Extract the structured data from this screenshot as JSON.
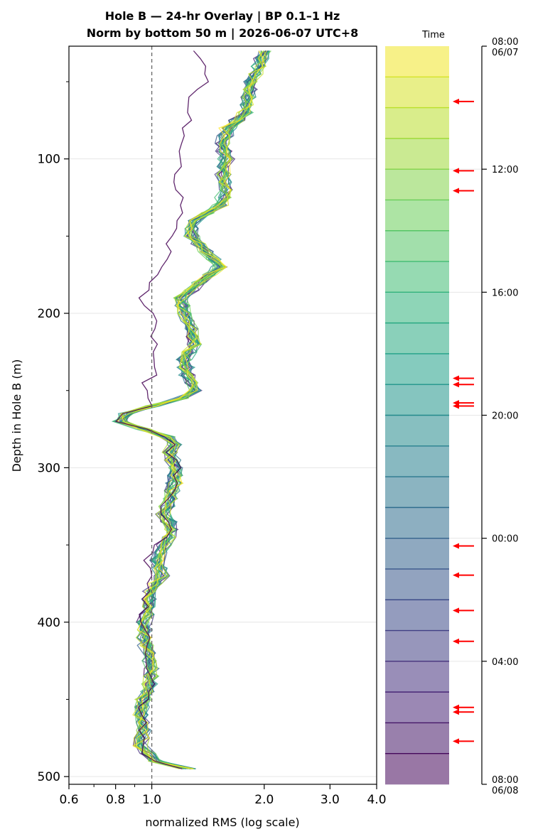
{
  "chart_data": {
    "type": "line",
    "title_line1": "Hole B — 24-hr Overlay  |  BP 0.1–1 Hz",
    "title_line2": "Norm by bottom 50 m  |  2026-06-07 UTC+8",
    "xlabel": "normalized RMS  (log scale)",
    "ylabel": "Depth in Hole B (m)",
    "x_scale": "log",
    "xlim": [
      0.6,
      4.0
    ],
    "ylim": [
      505,
      27
    ],
    "x_ticks": [
      {
        "value": 0.6,
        "label": "0.6"
      },
      {
        "value": 0.8,
        "label": "0.8"
      },
      {
        "value": 1.0,
        "label": "1.0"
      },
      {
        "value": 2.0,
        "label": "2.0"
      },
      {
        "value": 3.0,
        "label": "3.0"
      },
      {
        "value": 4.0,
        "label": "4.0"
      }
    ],
    "y_ticks": [
      {
        "value": 100,
        "label": "100"
      },
      {
        "value": 200,
        "label": "200"
      },
      {
        "value": 300,
        "label": "300"
      },
      {
        "value": 400,
        "label": "400"
      },
      {
        "value": 500,
        "label": "500"
      }
    ],
    "reference_line_x": 1.0,
    "grid": "horizontal",
    "colorbar": {
      "label": "Time",
      "colormap": "viridis",
      "start": "2026-06-07 08:00",
      "end": "2026-06-08 08:00",
      "ticks": [
        {
          "hour": 0,
          "label": "08:00",
          "sublabel": "06/07"
        },
        {
          "hour": 4,
          "label": "12:00",
          "sublabel": ""
        },
        {
          "hour": 8,
          "label": "16:00",
          "sublabel": ""
        },
        {
          "hour": 12,
          "label": "20:00",
          "sublabel": ""
        },
        {
          "hour": 16,
          "label": "00:00",
          "sublabel": ""
        },
        {
          "hour": 20,
          "label": "04:00",
          "sublabel": ""
        },
        {
          "hour": 24,
          "label": "08:00",
          "sublabel": "06/08"
        }
      ],
      "arrows_hours": [
        1.8,
        4.05,
        4.7,
        10.8,
        11.0,
        11.6,
        11.7,
        16.25,
        17.2,
        18.35,
        19.35,
        21.5,
        21.65,
        22.6
      ],
      "arrow_color": "#ff0000"
    },
    "depth_profile": {
      "depth": [
        30,
        40,
        50,
        60,
        70,
        80,
        90,
        100,
        110,
        120,
        130,
        140,
        150,
        160,
        170,
        180,
        190,
        200,
        210,
        220,
        230,
        240,
        250,
        255,
        260,
        265,
        270,
        275,
        280,
        285,
        290,
        300,
        310,
        320,
        330,
        340,
        350,
        360,
        370,
        380,
        390,
        400,
        410,
        420,
        430,
        440,
        450,
        460,
        470,
        480,
        490,
        495
      ],
      "typical_rms": [
        2.0,
        1.95,
        1.85,
        1.82,
        1.78,
        1.6,
        1.55,
        1.58,
        1.56,
        1.58,
        1.52,
        1.3,
        1.28,
        1.4,
        1.52,
        1.35,
        1.2,
        1.22,
        1.28,
        1.3,
        1.22,
        1.25,
        1.3,
        1.2,
        1.0,
        0.85,
        0.82,
        0.95,
        1.1,
        1.15,
        1.12,
        1.16,
        1.15,
        1.12,
        1.08,
        1.14,
        1.08,
        1.03,
        1.06,
        1.0,
        0.98,
        0.95,
        0.96,
        0.98,
        1.0,
        0.99,
        0.95,
        0.93,
        0.95,
        0.93,
        1.02,
        1.25
      ],
      "outlier_rms": [
        1.3,
        1.35,
        1.38,
        1.3,
        1.28,
        1.25,
        1.2,
        1.18,
        1.15,
        1.18,
        1.2,
        1.16,
        1.14,
        1.1,
        1.05,
        1.0,
        0.95,
        1.0,
        1.05,
        1.0,
        1.02,
        1.0,
        0.95,
        0.98,
        1.0,
        0.85,
        0.8,
        0.95,
        1.08,
        1.12,
        1.1,
        1.16,
        1.15,
        1.1,
        1.08,
        1.1,
        1.02,
        0.98,
        1.0,
        0.98,
        0.96,
        0.95,
        0.96,
        0.98,
        1.0,
        0.99,
        0.95,
        0.93,
        0.95,
        0.93,
        1.0,
        1.2
      ],
      "outlier_hour": 24,
      "curve_count": 24
    }
  }
}
